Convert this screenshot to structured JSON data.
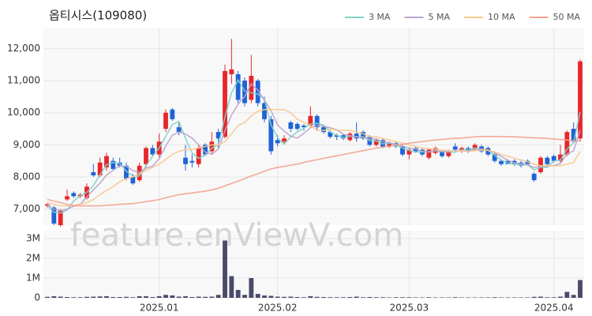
{
  "chart_data": {
    "type": "candlestick",
    "title": "옵티시스(109080)",
    "watermark": "feature.enViewV.com",
    "up_color": "#e8262a",
    "down_color": "#1f63d6",
    "grid": true,
    "legend": "top-right",
    "categories": [
      null,
      null,
      null,
      null,
      null,
      null,
      null,
      null,
      null,
      null,
      null,
      null,
      null,
      null,
      null,
      null,
      null,
      "2025.01",
      null,
      null,
      null,
      null,
      null,
      null,
      null,
      null,
      null,
      null,
      null,
      null,
      null,
      null,
      null,
      null,
      null,
      "2025.02",
      null,
      null,
      null,
      null,
      null,
      null,
      null,
      null,
      null,
      null,
      null,
      null,
      null,
      null,
      null,
      null,
      null,
      null,
      null,
      "2025.03",
      null,
      null,
      null,
      null,
      null,
      null,
      null,
      null,
      null,
      null,
      null,
      null,
      null,
      null,
      null,
      null,
      null,
      null,
      null,
      null,
      null,
      "2025.04",
      null,
      null,
      null,
      null
    ],
    "open": [
      7100,
      7050,
      6500,
      7300,
      7500,
      7400,
      7350,
      8150,
      8050,
      8300,
      8500,
      8450,
      8350,
      8000,
      7900,
      8400,
      8900,
      8700,
      9500,
      10100,
      9550,
      8600,
      8500,
      8400,
      9000,
      8800,
      9400,
      9250,
      11200,
      11200,
      11000,
      10400,
      11000,
      10300,
      9800,
      9150,
      9100,
      9700,
      9650,
      9600,
      9600,
      9900,
      9550,
      9400,
      9300,
      9300,
      9150,
      9350,
      9400,
      9250,
      9000,
      9150,
      8950,
      9050,
      8950,
      8700,
      8900,
      8850,
      8600,
      8750,
      8800,
      8650,
      8950,
      8800,
      8900,
      8850,
      8950,
      8900,
      8700,
      8500,
      8500,
      8500,
      8450,
      8500,
      8100,
      8150,
      8600,
      8650,
      8500,
      8700,
      9500,
      9200
    ],
    "high": [
      7200,
      7100,
      7000,
      7600,
      7550,
      7500,
      7800,
      8400,
      8600,
      8750,
      8600,
      8600,
      8450,
      8100,
      8450,
      8950,
      9000,
      9350,
      10100,
      10150,
      9700,
      9000,
      8700,
      9000,
      9050,
      9400,
      9500,
      11500,
      12300,
      11300,
      11100,
      11800,
      11050,
      10500,
      9900,
      9300,
      9300,
      9750,
      9700,
      9650,
      10200,
      9950,
      9600,
      9450,
      9350,
      9350,
      9400,
      9700,
      9450,
      9300,
      9200,
      9200,
      9100,
      9100,
      9000,
      8900,
      8950,
      8900,
      8900,
      8950,
      8850,
      8850,
      9050,
      8950,
      8950,
      9050,
      9000,
      8950,
      8750,
      8550,
      8550,
      8550,
      8500,
      8550,
      8150,
      8650,
      8650,
      8700,
      9000,
      9450,
      9700,
      11650
    ],
    "low": [
      7050,
      6500,
      6450,
      7250,
      7350,
      7350,
      7300,
      8000,
      8000,
      8200,
      8200,
      8300,
      7900,
      7750,
      7850,
      8300,
      8650,
      8600,
      9400,
      9750,
      9300,
      8200,
      8300,
      8300,
      8650,
      8700,
      8900,
      9200,
      10900,
      10300,
      10200,
      10300,
      10200,
      9700,
      8700,
      8950,
      9050,
      9400,
      9450,
      9450,
      9550,
      9450,
      9350,
      9200,
      9150,
      9150,
      9100,
      9100,
      9150,
      8950,
      8950,
      8900,
      8900,
      8900,
      8650,
      8550,
      8750,
      8650,
      8550,
      8700,
      8600,
      8600,
      8800,
      8750,
      8750,
      8800,
      8750,
      8650,
      8450,
      8350,
      8400,
      8350,
      8300,
      8350,
      7850,
      8100,
      8350,
      8450,
      8450,
      8650,
      9050,
      9100
    ],
    "close": [
      7150,
      6550,
      6950,
      7400,
      7400,
      7450,
      7700,
      8050,
      8450,
      8650,
      8250,
      8350,
      7950,
      7800,
      8350,
      8900,
      8700,
      9100,
      10000,
      9800,
      9400,
      8400,
      8450,
      8900,
      8700,
      9100,
      9200,
      11300,
      11350,
      10400,
      10300,
      11150,
      10300,
      9800,
      8800,
      9050,
      9200,
      9500,
      9500,
      9550,
      9900,
      9550,
      9400,
      9250,
      9250,
      9200,
      9350,
      9200,
      9200,
      9000,
      9150,
      8950,
      9050,
      8950,
      8700,
      8850,
      8800,
      8700,
      8850,
      8900,
      8650,
      8800,
      8850,
      8900,
      8800,
      9000,
      8800,
      8700,
      8500,
      8400,
      8400,
      8400,
      8350,
      8400,
      7900,
      8600,
      8400,
      8500,
      8700,
      9400,
      9100,
      11600
    ],
    "series": [
      {
        "name": "3 MA",
        "color": "#7fd0c8",
        "values": [
          7100,
          6900,
          6880,
          6970,
          7250,
          7420,
          7520,
          7730,
          8070,
          8380,
          8450,
          8420,
          8180,
          8030,
          8030,
          8350,
          8650,
          8900,
          9270,
          9630,
          9730,
          9200,
          8750,
          8580,
          8680,
          8900,
          9000,
          9870,
          10620,
          11020,
          10680,
          10620,
          10580,
          10420,
          9630,
          9220,
          9020,
          9250,
          9400,
          9520,
          9650,
          9670,
          9620,
          9400,
          9300,
          9230,
          9270,
          9250,
          9250,
          9130,
          9120,
          9030,
          9050,
          8980,
          8900,
          8830,
          8780,
          8780,
          8780,
          8820,
          8800,
          8780,
          8770,
          8850,
          8850,
          8900,
          8870,
          8830,
          8670,
          8530,
          8430,
          8400,
          8380,
          8380,
          8220,
          8300,
          8300,
          8500,
          8530,
          8870,
          9070,
          10030
        ]
      },
      {
        "name": "5 MA",
        "color": "#b8a4cc",
        "values": [
          7150,
          7000,
          6950,
          7000,
          7090,
          7150,
          7380,
          7600,
          7810,
          8060,
          8210,
          8350,
          8330,
          8200,
          8140,
          8270,
          8340,
          8570,
          8970,
          9300,
          9400,
          9340,
          9210,
          9000,
          8770,
          8710,
          8870,
          9440,
          9930,
          10270,
          10510,
          10900,
          10700,
          10390,
          10070,
          9620,
          9430,
          9270,
          9210,
          9360,
          9530,
          9600,
          9580,
          9530,
          9470,
          9330,
          9290,
          9250,
          9240,
          9190,
          9180,
          9100,
          9070,
          9020,
          8960,
          8900,
          8870,
          8800,
          8780,
          8820,
          8780,
          8780,
          8810,
          8820,
          8800,
          8870,
          8870,
          8840,
          8760,
          8640,
          8520,
          8440,
          8410,
          8390,
          8290,
          8330,
          8330,
          8360,
          8420,
          8720,
          8820,
          9460
        ]
      },
      {
        "name": "10 MA",
        "color": "#f5c98e",
        "values": [
          7200,
          7150,
          7100,
          7100,
          7120,
          7150,
          7200,
          7300,
          7450,
          7580,
          7700,
          7850,
          7950,
          8000,
          8100,
          8200,
          8300,
          8400,
          8550,
          8700,
          8800,
          8850,
          8860,
          8900,
          8950,
          9000,
          9000,
          9100,
          9350,
          9600,
          9700,
          9900,
          10050,
          10100,
          10100,
          10100,
          10100,
          10000,
          9800,
          9700,
          9600,
          9450,
          9450,
          9500,
          9450,
          9450,
          9450,
          9400,
          9350,
          9250,
          9250,
          9200,
          9150,
          9100,
          9050,
          9000,
          8950,
          8900,
          8880,
          8870,
          8830,
          8820,
          8800,
          8820,
          8800,
          8820,
          8840,
          8830,
          8780,
          8700,
          8650,
          8580,
          8530,
          8470,
          8400,
          8350,
          8350,
          8350,
          8350,
          8400,
          8450,
          8800
        ]
      },
      {
        "name": "50 MA",
        "color": "#f4a08e",
        "values": [
          7300,
          7250,
          7200,
          7150,
          7100,
          7100,
          7100,
          7100,
          7100,
          7120,
          7130,
          7150,
          7160,
          7170,
          7200,
          7230,
          7260,
          7300,
          7350,
          7400,
          7450,
          7480,
          7500,
          7530,
          7560,
          7600,
          7650,
          7720,
          7800,
          7870,
          7950,
          8030,
          8100,
          8180,
          8250,
          8300,
          8330,
          8370,
          8400,
          8450,
          8500,
          8540,
          8580,
          8620,
          8660,
          8700,
          8740,
          8780,
          8820,
          8860,
          8900,
          8930,
          8960,
          8990,
          9020,
          9050,
          9080,
          9100,
          9130,
          9150,
          9170,
          9190,
          9200,
          9210,
          9230,
          9250,
          9260,
          9260,
          9260,
          9260,
          9250,
          9250,
          9240,
          9230,
          9220,
          9210,
          9200,
          9180,
          9170,
          9150,
          9130,
          9120
        ]
      }
    ],
    "ylim": [
      6500,
      12650
    ],
    "yticks": [
      {
        "value": 7000,
        "label": "7,000"
      },
      {
        "value": 8000,
        "label": "8,000"
      },
      {
        "value": 9000,
        "label": "9,000"
      },
      {
        "value": 10000,
        "label": "10,000"
      },
      {
        "value": 11000,
        "label": "11,000"
      },
      {
        "value": 12000,
        "label": "12,000"
      }
    ],
    "volume": {
      "color": "#4a4a6a",
      "values": [
        50000,
        80000,
        60000,
        40000,
        30000,
        30000,
        50000,
        60000,
        70000,
        80000,
        40000,
        40000,
        50000,
        30000,
        80000,
        80000,
        40000,
        80000,
        150000,
        120000,
        60000,
        80000,
        40000,
        60000,
        50000,
        60000,
        150000,
        2900000,
        1100000,
        400000,
        150000,
        1000000,
        200000,
        120000,
        100000,
        60000,
        50000,
        60000,
        40000,
        30000,
        80000,
        50000,
        40000,
        30000,
        30000,
        30000,
        40000,
        60000,
        30000,
        40000,
        30000,
        30000,
        20000,
        30000,
        30000,
        30000,
        20000,
        20000,
        30000,
        20000,
        20000,
        20000,
        30000,
        20000,
        20000,
        20000,
        20000,
        20000,
        30000,
        20000,
        20000,
        20000,
        20000,
        20000,
        50000,
        60000,
        30000,
        30000,
        60000,
        300000,
        150000,
        900000
      ],
      "ylim": [
        0,
        3400000
      ],
      "yticks": [
        0,
        {
          "value": 1000000,
          "label": "1M"
        },
        {
          "value": 2000000,
          "label": "2M"
        },
        {
          "value": 3000000,
          "label": "3M"
        }
      ]
    }
  }
}
